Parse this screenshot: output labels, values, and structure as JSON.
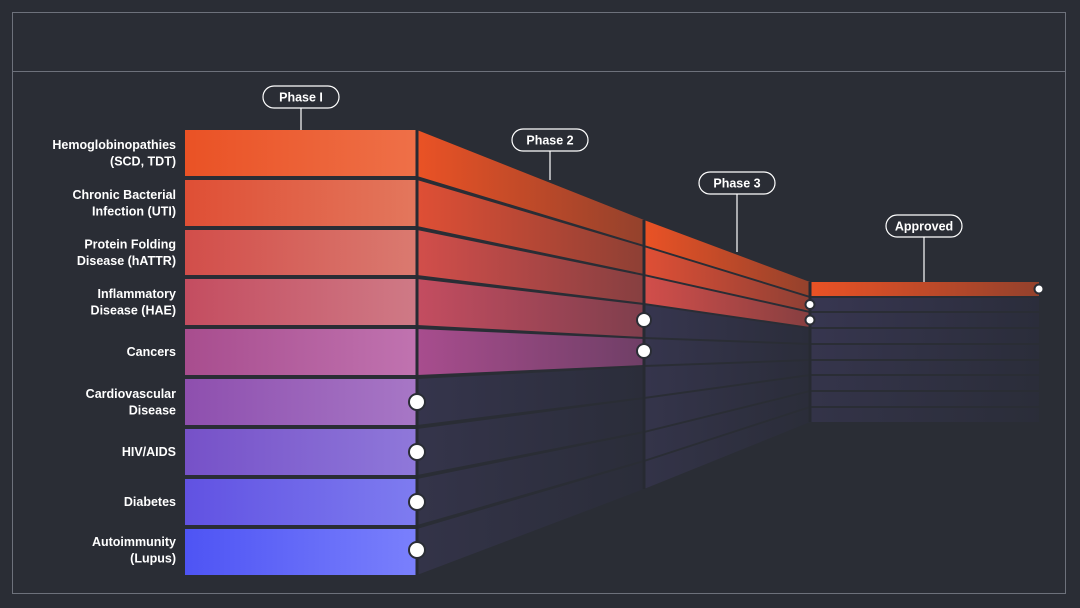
{
  "diagram": {
    "phases": [
      {
        "label": "Phase I"
      },
      {
        "label": "Phase 2"
      },
      {
        "label": "Phase 3"
      },
      {
        "label": "Approved"
      }
    ],
    "rows": [
      {
        "label_lines": [
          "Hemoglobinopathies",
          "(SCD, TDT)"
        ],
        "furthest_stage": "Approved",
        "color_start": "#ea5225",
        "color_end": "#ee7048"
      },
      {
        "label_lines": [
          "Chronic Bacterial",
          "Infection (UTI)"
        ],
        "furthest_stage": "Phase 3",
        "color_start": "#df4f35",
        "color_end": "#e3775d"
      },
      {
        "label_lines": [
          "Protein Folding",
          "Disease (hATTR)"
        ],
        "furthest_stage": "Phase 3",
        "color_start": "#d24e4a",
        "color_end": "#da7a70"
      },
      {
        "label_lines": [
          "Inflammatory",
          "Disease (HAE)"
        ],
        "furthest_stage": "Phase 2",
        "color_start": "#c44d60",
        "color_end": "#cf7a86"
      },
      {
        "label_lines": [
          "Cancers"
        ],
        "furthest_stage": "Phase 2",
        "color_start": "#a84d8e",
        "color_end": "#c073b0"
      },
      {
        "label_lines": [
          "Cardiovascular",
          "Disease"
        ],
        "furthest_stage": "Phase I",
        "color_start": "#8e4fae",
        "color_end": "#a777c6"
      },
      {
        "label_lines": [
          "HIV/AIDS"
        ],
        "furthest_stage": "Phase I",
        "color_start": "#7651c8",
        "color_end": "#8f78da"
      },
      {
        "label_lines": [
          "Diabetes"
        ],
        "furthest_stage": "Phase I",
        "color_start": "#6152e2",
        "color_end": "#7e7cf0"
      },
      {
        "label_lines": [
          "Autoimmunity",
          "(Lupus)"
        ],
        "furthest_stage": "Phase I",
        "color_start": "#4e54f4",
        "color_end": "#7a80fc"
      }
    ],
    "colors": {
      "background": "#2a2d35",
      "frame": "#6d717b",
      "panel_separator": "#272a32",
      "inactive_start": "#3a3856",
      "inactive_end": "#2b2d3c",
      "marker_fill": "#ffffff",
      "marker_stroke": "#2a2d35"
    }
  }
}
